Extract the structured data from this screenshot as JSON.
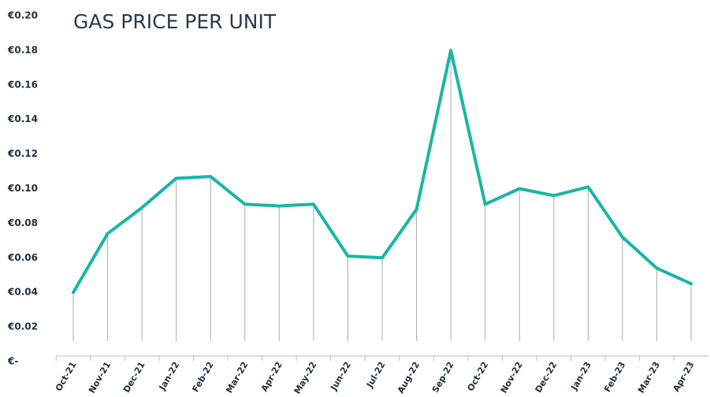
{
  "chart_data": {
    "type": "line",
    "title": "GAS PRICE PER UNIT",
    "categories": [
      "Oct-21",
      "Nov-21",
      "Dec-21",
      "Jan-22",
      "Feb-22",
      "Mar-22",
      "Apr-22",
      "May-22",
      "Jun-22",
      "Jul-22",
      "Aug-22",
      "Sep-22",
      "Oct-22",
      "Nov-22",
      "Dec-22",
      "Jan-23",
      "Feb-23",
      "Mar-23",
      "Apr-23"
    ],
    "series": [
      {
        "name": "Gas price per unit",
        "color": "#1ab5a6",
        "values": [
          0.04,
          0.074,
          0.089,
          0.106,
          0.107,
          0.091,
          0.09,
          0.091,
          0.061,
          0.06,
          0.088,
          0.18,
          0.091,
          0.1,
          0.096,
          0.101,
          0.072,
          0.054,
          0.045
        ]
      }
    ],
    "ylim": [
      0,
      0.2
    ],
    "yticks": [
      {
        "value": 0,
        "label": "€-"
      },
      {
        "value": 0.02,
        "label": "€0.02"
      },
      {
        "value": 0.04,
        "label": "€0.04"
      },
      {
        "value": 0.06,
        "label": "€0.06"
      },
      {
        "value": 0.08,
        "label": "€0.08"
      },
      {
        "value": 0.1,
        "label": "€0.10"
      },
      {
        "value": 0.12,
        "label": "€0.12"
      },
      {
        "value": 0.14,
        "label": "€0.14"
      },
      {
        "value": 0.16,
        "label": "€0.16"
      },
      {
        "value": 0.18,
        "label": "€0.18"
      },
      {
        "value": 0.2,
        "label": "€0.20"
      }
    ]
  }
}
